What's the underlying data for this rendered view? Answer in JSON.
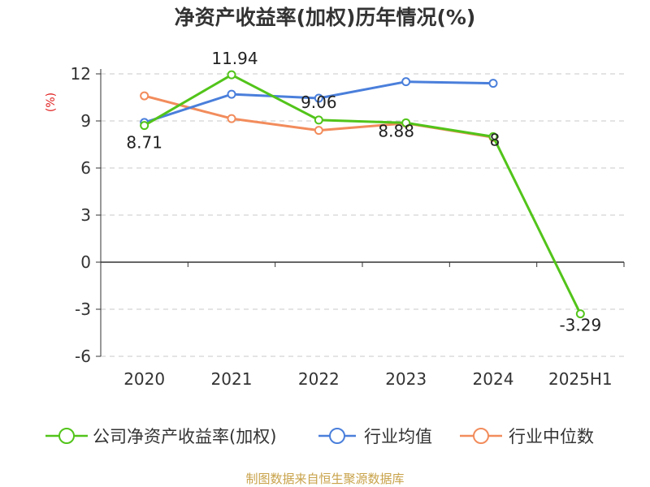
{
  "chart_data": {
    "type": "line",
    "title": "净资产收益率(加权)历年情况(%)",
    "ylabel": "(%)",
    "categories": [
      "2020",
      "2021",
      "2022",
      "2023",
      "2024",
      "2025H1"
    ],
    "ylim": [
      -6,
      12
    ],
    "yticks": [
      -6,
      -3,
      0,
      3,
      6,
      9,
      12
    ],
    "grid": true,
    "legend_position": "bottom",
    "series": [
      {
        "name": "公司净资产收益率(加权)",
        "color": "#52c41a",
        "values": [
          8.71,
          11.94,
          9.06,
          8.88,
          8.0,
          -3.29
        ],
        "labels": [
          "8.71",
          "11.94",
          "9.06",
          "8.88",
          "8",
          "-3.29"
        ]
      },
      {
        "name": "行业均值",
        "color": "#4a7fdb",
        "values": [
          8.9,
          10.7,
          10.45,
          11.5,
          11.4,
          null
        ],
        "labels": null
      },
      {
        "name": "行业中位数",
        "color": "#f28c5c",
        "values": [
          10.6,
          9.15,
          8.4,
          8.85,
          7.95,
          null
        ],
        "labels": null
      }
    ]
  },
  "source_note": "制图数据来自恒生聚源数据库"
}
